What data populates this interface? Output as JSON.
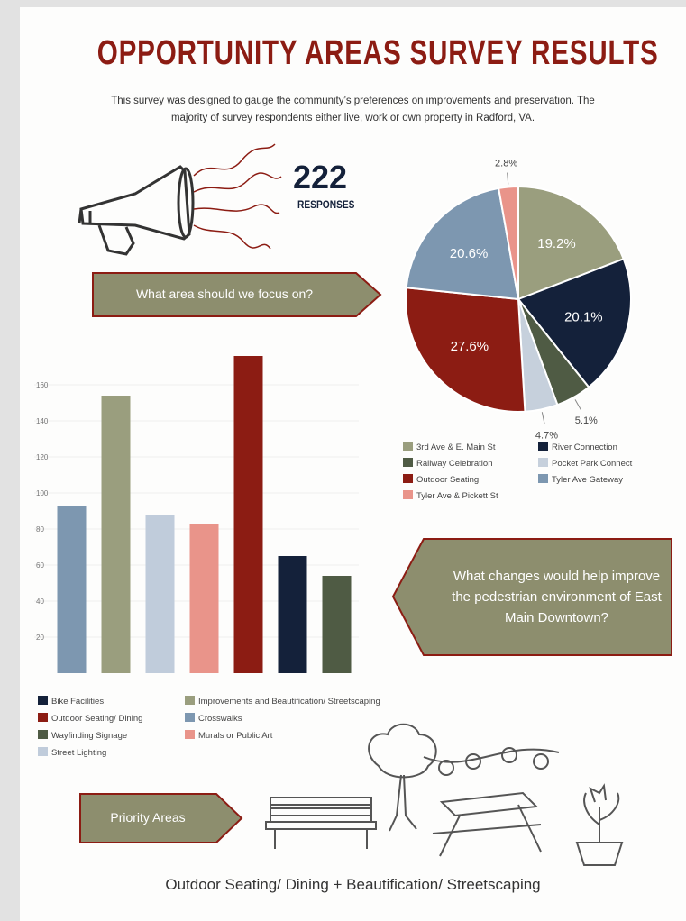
{
  "header": {
    "title": "OPPORTUNITY AREAS SURVEY RESULTS",
    "subtitle": [
      "This survey was designed to gauge the community’s preferences on improvements and preservation.  The",
      "majority of survey respondents either live, work or own property in Radford, VA."
    ],
    "responses_count": "222",
    "responses_label": "RESPONSES"
  },
  "callouts": {
    "focus_question": "What area should we focus on?",
    "pedestrian_question": "What changes would help improve the pedestrian environment of East Main Downtown?",
    "priority_label": "Priority Areas",
    "priority_text": "Outdoor Seating/ Dining + Beautification/ Streetscaping"
  },
  "chart_data": [
    {
      "type": "pie",
      "categories": [
        "3rd Ave & E. Main St",
        "River Connection",
        "Railway Celebration",
        "Pocket Park Connect",
        "Outdoor Seating",
        "Tyler Ave Gateway",
        "Tyler Ave & Pickett St"
      ],
      "values": [
        19.2,
        20.1,
        5.1,
        4.7,
        27.6,
        20.6,
        2.8
      ],
      "value_labels": [
        "19.2%",
        "20.1%",
        "5.1%",
        "4.7%",
        "27.6%",
        "20.6%",
        "2.8%"
      ],
      "colors": [
        "#9a9e7e",
        "#14213a",
        "#4f5b44",
        "#c6d0dc",
        "#8c1c13",
        "#7d97b0",
        "#e9948a"
      ]
    },
    {
      "type": "bar",
      "categories": [
        "Crosswalks",
        "Improvements and Beautification/ Streetscaping",
        "Street Lighting",
        "Murals or Public Art",
        "Outdoor Seating/ Dining",
        "Bike Facilities",
        "Wayfinding Signage"
      ],
      "values": [
        93,
        154,
        88,
        83,
        176,
        65,
        54
      ],
      "colors": [
        "#7d97b0",
        "#9a9e7e",
        "#c0ccdb",
        "#e9948a",
        "#8c1c13",
        "#14213a",
        "#4f5b44"
      ],
      "ylim": [
        0,
        180
      ],
      "yticks": [
        20,
        40,
        60,
        80,
        100,
        120,
        140,
        160
      ],
      "grid": true
    }
  ]
}
